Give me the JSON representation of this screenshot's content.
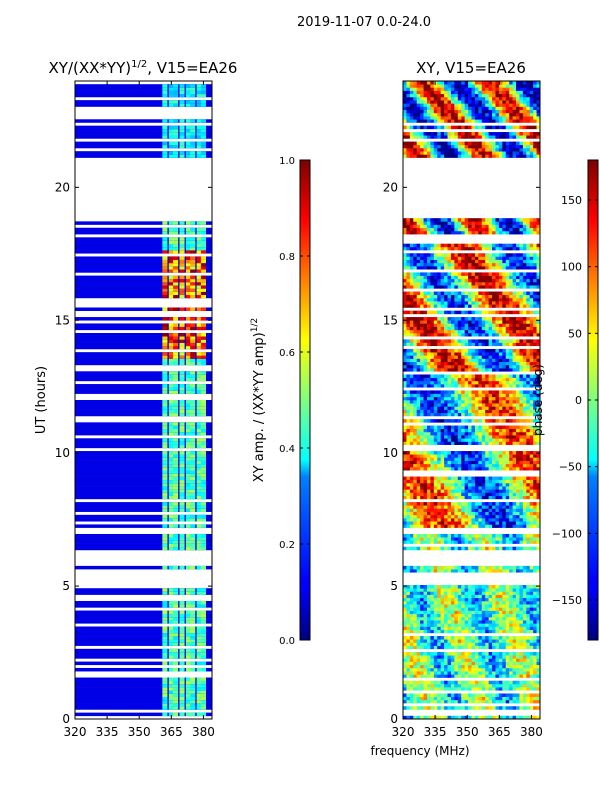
{
  "suptitle": "2019-11-07 0.0-24.0",
  "chart_data": [
    {
      "type": "heatmap",
      "title": "XY/(XX*YY)",
      "title_sup": "1/2",
      "title_suffix": ", V15=EA26",
      "xlabel": "",
      "ylabel": "UT (hours)",
      "xlim": [
        320,
        384
      ],
      "ylim": [
        0,
        24
      ],
      "xticks": [
        320,
        335,
        350,
        365,
        380
      ],
      "yticks": [
        0,
        5,
        10,
        15,
        20
      ],
      "colorscale": "jet",
      "value_range": [
        0,
        1
      ],
      "bright_channels_mhz": [
        362,
        365,
        367,
        370,
        373,
        375,
        378,
        380
      ],
      "data_gaps_hours": [
        [
          4.95,
          5.5
        ],
        [
          5.65,
          6.3
        ],
        [
          6.9,
          7.2
        ],
        [
          18.75,
          21.05
        ],
        [
          18.0,
          18.15
        ]
      ],
      "colorbar": {
        "label": "XY amp. / (XX*YY amp)",
        "label_sup": "1/2",
        "ticks": [
          "0.0",
          "0.2",
          "0.4",
          "0.6",
          "0.8",
          "1.0"
        ],
        "tick_values": [
          0,
          0.2,
          0.4,
          0.6,
          0.8,
          1.0
        ]
      }
    },
    {
      "type": "heatmap",
      "title": "XY, V15=EA26",
      "xlabel": "frequency (MHz)",
      "ylabel": "",
      "xlim": [
        320,
        384
      ],
      "ylim": [
        0,
        24
      ],
      "xticks": [
        320,
        335,
        350,
        365,
        380
      ],
      "yticks": [
        0,
        5,
        10,
        15,
        20
      ],
      "colorscale": "jet",
      "value_range": [
        -180,
        180
      ],
      "data_gaps_hours": [
        [
          4.95,
          5.5
        ],
        [
          5.65,
          6.3
        ],
        [
          6.9,
          7.2
        ],
        [
          18.75,
          21.05
        ],
        [
          18.0,
          18.15
        ]
      ],
      "colorbar": {
        "label": "phase (deg)",
        "ticks": [
          "−150",
          "−100",
          "−50",
          "0",
          "50",
          "100",
          "150"
        ],
        "tick_values": [
          -150,
          -100,
          -50,
          0,
          50,
          100,
          150
        ]
      }
    }
  ]
}
